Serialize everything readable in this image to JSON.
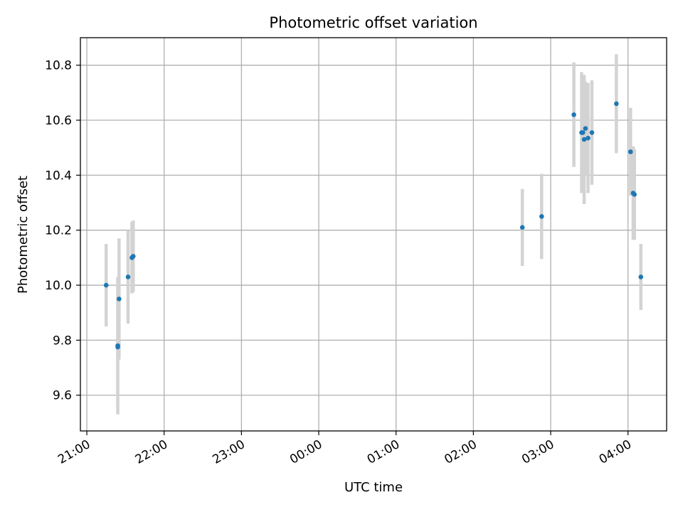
{
  "chart_data": {
    "type": "scatter",
    "title": "Photometric offset variation",
    "xlabel": "UTC time",
    "ylabel": "Photometric offset",
    "x_axis_kind": "time",
    "xlim": [
      "20:55",
      "04:30"
    ],
    "ylim": [
      9.47,
      10.9
    ],
    "xticks": [
      "21:00",
      "22:00",
      "23:00",
      "00:00",
      "01:00",
      "02:00",
      "03:00",
      "04:00"
    ],
    "yticks": [
      "9.6",
      "9.8",
      "10.0",
      "10.2",
      "10.4",
      "10.6",
      "10.8"
    ],
    "grid": true,
    "marker_color": "#1f77b4",
    "errorbar_color": "#d3d3d3",
    "series": [
      {
        "points": [
          {
            "x": "21:15",
            "y": 10.0,
            "yerr": 0.15
          },
          {
            "x": "21:24",
            "y": 9.78,
            "yerr": 0.25
          },
          {
            "x": "21:24",
            "y": 9.775,
            "yerr": 0.05
          },
          {
            "x": "21:25",
            "y": 9.95,
            "yerr": 0.22
          },
          {
            "x": "21:32",
            "y": 10.03,
            "yerr": 0.17
          },
          {
            "x": "21:35",
            "y": 10.1,
            "yerr": 0.13
          },
          {
            "x": "21:36",
            "y": 10.105,
            "yerr": 0.13
          },
          {
            "x": "02:38",
            "y": 10.21,
            "yerr": 0.14
          },
          {
            "x": "02:53",
            "y": 10.25,
            "yerr": 0.155
          },
          {
            "x": "03:18",
            "y": 10.62,
            "yerr": 0.19
          },
          {
            "x": "03:24",
            "y": 10.555,
            "yerr": 0.22
          },
          {
            "x": "03:25",
            "y": 10.555,
            "yerr": 0.2
          },
          {
            "x": "03:26",
            "y": 10.53,
            "yerr": 0.235
          },
          {
            "x": "03:27",
            "y": 10.57,
            "yerr": 0.17
          },
          {
            "x": "03:29",
            "y": 10.535,
            "yerr": 0.2
          },
          {
            "x": "03:32",
            "y": 10.555,
            "yerr": 0.19
          },
          {
            "x": "03:51",
            "y": 10.66,
            "yerr": 0.18
          },
          {
            "x": "04:02",
            "y": 10.485,
            "yerr": 0.16
          },
          {
            "x": "04:04",
            "y": 10.335,
            "yerr": 0.17
          },
          {
            "x": "04:05",
            "y": 10.33,
            "yerr": 0.165
          },
          {
            "x": "04:10",
            "y": 10.03,
            "yerr": 0.12
          }
        ]
      }
    ]
  }
}
